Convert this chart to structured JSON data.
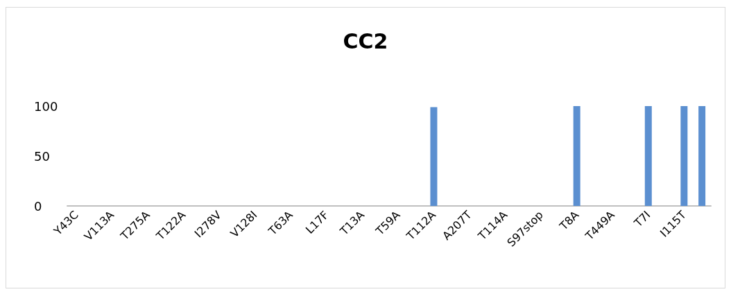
{
  "chart_data": {
    "type": "bar",
    "title": "CC2",
    "categories": [
      "Y43C",
      null,
      "V113A",
      null,
      "T275A",
      null,
      "T122A",
      null,
      "I278V",
      null,
      "V128I",
      null,
      "T63A",
      null,
      "L17F",
      null,
      "T13A",
      null,
      "T59A",
      null,
      "T112A",
      null,
      "A207T",
      null,
      "T114A",
      null,
      "S97stop",
      null,
      "T8A",
      null,
      "T449A",
      null,
      "T7I",
      null,
      "I115T",
      null
    ],
    "values": [
      0,
      0,
      0,
      0,
      0,
      0,
      0,
      0,
      0,
      0,
      0,
      0,
      0,
      0,
      0,
      0,
      0,
      0,
      0,
      0,
      99,
      0,
      0,
      0,
      0,
      0,
      0,
      0,
      100,
      0,
      0,
      0,
      100,
      0,
      100,
      100
    ],
    "color": "#5b8fd0",
    "ylim": [
      0,
      100
    ],
    "yticks": [
      0,
      50,
      100
    ],
    "grid": false
  }
}
